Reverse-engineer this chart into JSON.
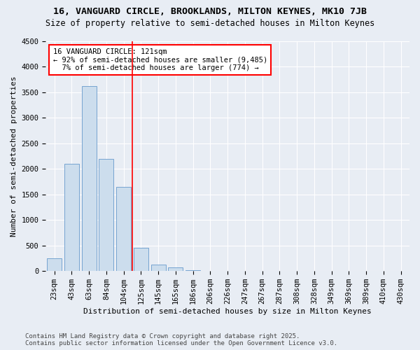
{
  "title1": "16, VANGUARD CIRCLE, BROOKLANDS, MILTON KEYNES, MK10 7JB",
  "title2": "Size of property relative to semi-detached houses in Milton Keynes",
  "xlabel": "Distribution of semi-detached houses by size in Milton Keynes",
  "ylabel": "Number of semi-detached properties",
  "categories": [
    "23sqm",
    "43sqm",
    "63sqm",
    "84sqm",
    "104sqm",
    "125sqm",
    "145sqm",
    "165sqm",
    "186sqm",
    "206sqm",
    "226sqm",
    "247sqm",
    "267sqm",
    "287sqm",
    "308sqm",
    "328sqm",
    "349sqm",
    "369sqm",
    "389sqm",
    "410sqm",
    "430sqm"
  ],
  "values": [
    250,
    2100,
    3620,
    2200,
    1650,
    450,
    125,
    65,
    10,
    4,
    2,
    1,
    0,
    0,
    0,
    0,
    0,
    0,
    0,
    0,
    0
  ],
  "bar_color": "#ccdded",
  "bar_edge_color": "#6699cc",
  "vline_x": 4.5,
  "vline_color": "red",
  "annotation_line1": "16 VANGUARD CIRCLE: 121sqm",
  "annotation_line2": "← 92% of semi-detached houses are smaller (9,485)",
  "annotation_line3": "  7% of semi-detached houses are larger (774) →",
  "annotation_box_color": "white",
  "annotation_box_edge": "red",
  "ylim": [
    0,
    4500
  ],
  "yticks": [
    0,
    500,
    1000,
    1500,
    2000,
    2500,
    3000,
    3500,
    4000,
    4500
  ],
  "background_color": "#e8edf4",
  "footer1": "Contains HM Land Registry data © Crown copyright and database right 2025.",
  "footer2": "Contains public sector information licensed under the Open Government Licence v3.0.",
  "title1_fontsize": 9.5,
  "title2_fontsize": 8.5,
  "xlabel_fontsize": 8,
  "ylabel_fontsize": 8,
  "tick_fontsize": 7.5,
  "annotation_fontsize": 7.5,
  "footer_fontsize": 6.5
}
